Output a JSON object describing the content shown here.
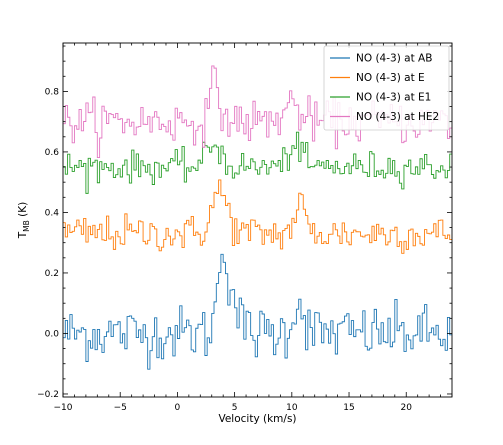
{
  "chart_data": {
    "type": "line",
    "xlabel": "Velocity (km/s)",
    "ylabel_main": "T",
    "ylabel_sub": "MB",
    "ylabel_unit": " (K)",
    "xlim": [
      -10,
      24
    ],
    "ylim": [
      -0.21,
      0.96
    ],
    "xticks": [
      -10,
      -5,
      0,
      5,
      10,
      15,
      20
    ],
    "yticks": [
      -0.2,
      0.0,
      0.2,
      0.4,
      0.6,
      0.8
    ],
    "ytick_labels": [
      "−0.2",
      "0.0",
      "0.2",
      "0.4",
      "0.6",
      "0.8"
    ],
    "xtick_labels": [
      "−10",
      "−5",
      "0",
      "5",
      "10",
      "15",
      "20"
    ],
    "channel_width_kms": 0.2,
    "legend_position": "upper right",
    "series": [
      {
        "name": "NO (4-3) at AB",
        "color": "#1f77b4",
        "baseline": 0.0,
        "noise_rms": 0.045,
        "lines": [
          {
            "center": 3.9,
            "fwhm": 0.9,
            "peak": 0.24
          },
          {
            "center": 4.7,
            "fwhm": 1.4,
            "peak": 0.12
          },
          {
            "center": 10.6,
            "fwhm": 1.2,
            "peak": 0.1
          }
        ]
      },
      {
        "name": "NO (4-3) at E",
        "color": "#ff7f0e",
        "baseline": 0.33,
        "noise_rms": 0.03,
        "lines": [
          {
            "center": 3.7,
            "fwhm": 1.6,
            "peak": 0.14
          },
          {
            "center": 10.7,
            "fwhm": 1.0,
            "peak": 0.1
          }
        ]
      },
      {
        "name": "NO (4-3) at E1",
        "color": "#2ca02c",
        "baseline": 0.55,
        "noise_rms": 0.025,
        "lines": [
          {
            "center": 3.2,
            "fwhm": 1.4,
            "peak": 0.08
          },
          {
            "center": 10.3,
            "fwhm": 1.2,
            "peak": 0.08
          }
        ]
      },
      {
        "name": "NO (4-3) at HE2",
        "color": "#e377c2",
        "baseline": 0.7,
        "noise_rms": 0.035,
        "lines": [
          {
            "center": 3.3,
            "fwhm": 1.0,
            "peak": 0.12
          },
          {
            "center": 10.0,
            "fwhm": 1.5,
            "peak": 0.06
          }
        ]
      }
    ]
  }
}
